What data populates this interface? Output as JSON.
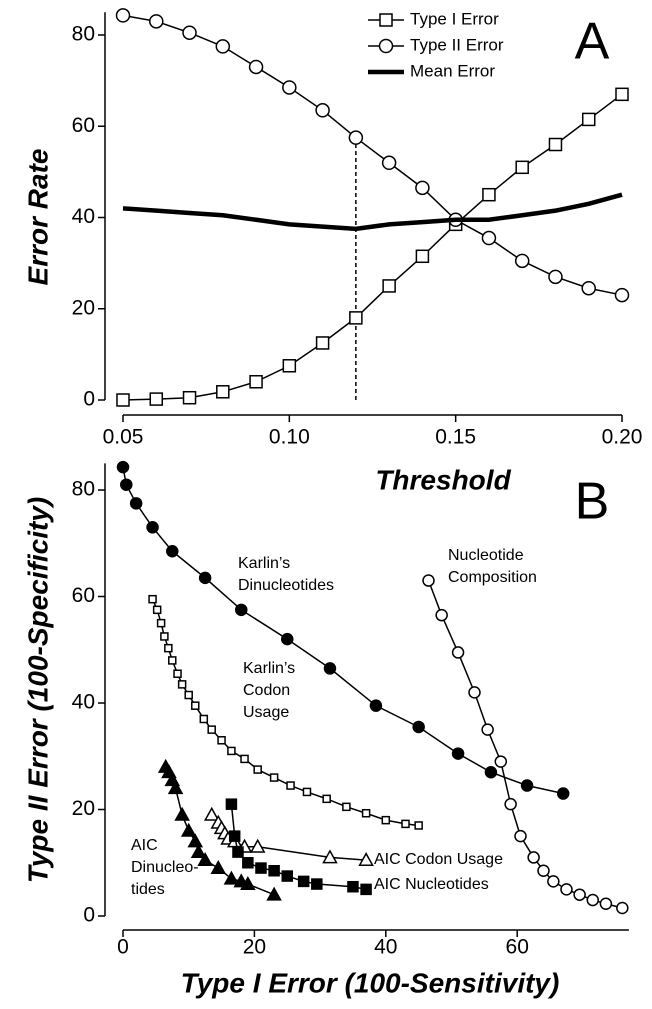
{
  "chart_data": [
    {
      "type": "line",
      "panel_label": "A",
      "x_label": "Threshold",
      "y_label": "Error Rate",
      "x": [
        0.05,
        0.06,
        0.07,
        0.08,
        0.09,
        0.1,
        0.11,
        0.12,
        0.13,
        0.14,
        0.15,
        0.16,
        0.17,
        0.18,
        0.19,
        0.2
      ],
      "series": [
        {
          "name": "Type I Error",
          "color": "#000000",
          "marker": "open-square",
          "line_width": 1.5,
          "values": [
            0,
            0.2,
            0.5,
            1.8,
            4,
            7.5,
            12.5,
            18,
            25,
            31.5,
            38.5,
            45,
            51,
            56,
            61.5,
            67
          ]
        },
        {
          "name": "Type II Error",
          "color": "#000000",
          "marker": "open-circle",
          "line_width": 1.5,
          "values": [
            84.3,
            83,
            80.5,
            77.5,
            73,
            68.5,
            63.5,
            57.5,
            52,
            46.5,
            39.5,
            35.5,
            30.5,
            27,
            24.5,
            23
          ]
        },
        {
          "name": "Mean Error",
          "color": "#000000",
          "marker": "none",
          "line_width": 4.5,
          "values": [
            42,
            41.5,
            41,
            40.5,
            39.5,
            38.5,
            38,
            37.5,
            38.5,
            39,
            39.5,
            39.5,
            40.5,
            41.5,
            43,
            45
          ]
        }
      ],
      "vline_x": 0.12,
      "xlim": [
        0.05,
        0.2
      ],
      "xticks": [
        0.05,
        {
          "value": 0.1,
          "label": "0.10"
        },
        0.15,
        {
          "value": 0.2,
          "label": "0.20"
        }
      ],
      "ylim": [
        0,
        85
      ],
      "yticks": [
        0,
        20,
        40,
        60,
        80
      ],
      "legend": "top-right"
    },
    {
      "type": "line",
      "panel_label": "B",
      "x_label": "Type I Error (100-Sensitivity)",
      "y_label": "Type II Error (100-Specificity)",
      "series": [
        {
          "label_lines": [
            "Karlin’s",
            "Dinucleotides"
          ],
          "color": "#000000",
          "marker": "filled-circle",
          "x": [
            0,
            0.5,
            2,
            4.5,
            7.5,
            12.5,
            18,
            25,
            31.5,
            38.5,
            45,
            51,
            56,
            61.5,
            67
          ],
          "values": [
            84.3,
            81,
            77.5,
            73,
            68.5,
            63.5,
            57.5,
            52,
            46.5,
            39.5,
            35.5,
            30.5,
            27,
            24.5,
            23
          ]
        },
        {
          "label_lines": [
            "Karlin’s",
            "Codon",
            "Usage"
          ],
          "color": "#000000",
          "marker": "small-open-square",
          "x": [
            4.5,
            5.2,
            5.8,
            6.3,
            6.9,
            7.5,
            8.3,
            9,
            10,
            11,
            12.3,
            13.5,
            15,
            16.5,
            18.5,
            20.5,
            23,
            25.5,
            28,
            31,
            34,
            37,
            40,
            43,
            45
          ],
          "values": [
            59.5,
            57.5,
            55,
            52.5,
            50.3,
            48,
            45.5,
            43.5,
            41.5,
            39.5,
            37,
            35,
            33,
            31,
            29.5,
            27.5,
            26,
            24.5,
            23.3,
            22,
            20.5,
            19.3,
            18,
            17.3,
            17
          ]
        },
        {
          "label_lines": [
            "Nucleotide",
            "Composition"
          ],
          "color": "#000000",
          "marker": "open-circle",
          "x": [
            46.5,
            48.5,
            51,
            53.5,
            55.5,
            57.5,
            59,
            60.5,
            62.5,
            64,
            65.5,
            67.5,
            69.5,
            71.5,
            73.5,
            76
          ],
          "values": [
            63,
            56.5,
            49.5,
            42,
            35,
            29,
            21,
            15,
            11,
            8.5,
            6.5,
            5,
            4,
            3,
            2.3,
            1.5
          ]
        },
        {
          "label_lines": [
            "AIC Codon Usage"
          ],
          "color": "#000000",
          "marker": "open-triangle",
          "x": [
            13.5,
            14.5,
            15,
            15.5,
            16,
            17,
            18.5,
            20.5,
            31.5,
            37
          ],
          "values": [
            19,
            17.5,
            16.5,
            15.5,
            14.5,
            14,
            13,
            13,
            11,
            10.5
          ]
        },
        {
          "label_lines": [
            "AIC Nucleotides"
          ],
          "color": "#000000",
          "marker": "filled-square",
          "x": [
            16.5,
            17,
            17.5,
            19,
            21,
            23,
            25,
            27.5,
            29.5,
            35,
            37
          ],
          "values": [
            21,
            15,
            12,
            10,
            9,
            8.5,
            7.5,
            6.5,
            6,
            5.5,
            5
          ]
        },
        {
          "label_lines": [
            "AIC",
            "Dinucleo-",
            "tides"
          ],
          "color": "#000000",
          "marker": "filled-triangle",
          "x": [
            6.5,
            7,
            7.5,
            8,
            9,
            10,
            11,
            11.5,
            12.5,
            14.5,
            16.5,
            18,
            19,
            23
          ],
          "values": [
            28,
            27,
            25.5,
            24,
            19,
            16,
            14,
            12,
            10.5,
            9,
            7,
            6.5,
            6,
            4
          ]
        }
      ],
      "xlim": [
        0,
        77
      ],
      "xticks": [
        0,
        20,
        40,
        60
      ],
      "ylim": [
        0,
        85
      ],
      "yticks": [
        0,
        20,
        40,
        60,
        80
      ]
    }
  ]
}
